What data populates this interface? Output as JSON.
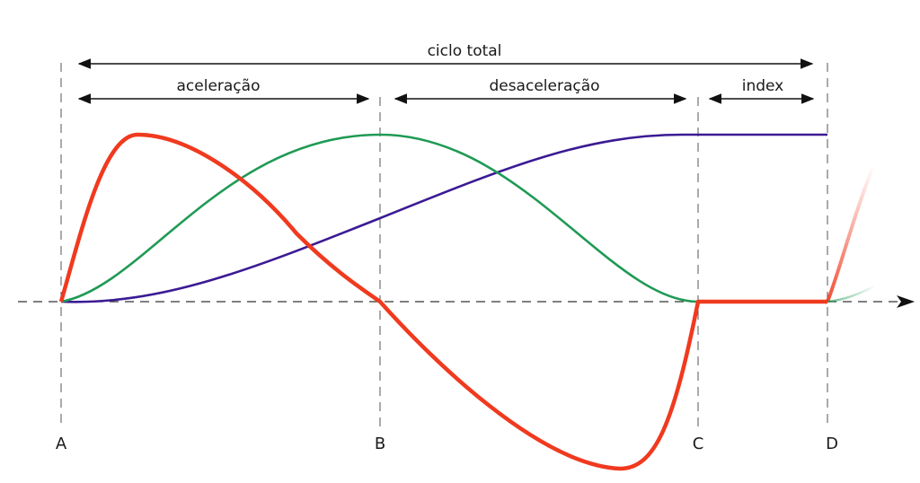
{
  "labels": {
    "ciclo_total": "ciclo total",
    "aceleracao": "aceleração",
    "desaceleracao": "desaceleração",
    "index": "index"
  },
  "points": [
    "A",
    "B",
    "C",
    "D"
  ],
  "colors": {
    "red_curve": "#f03a1f",
    "green_curve": "#1f9a55",
    "purple_curve": "#3b1a94",
    "axis": "#333333"
  }
}
